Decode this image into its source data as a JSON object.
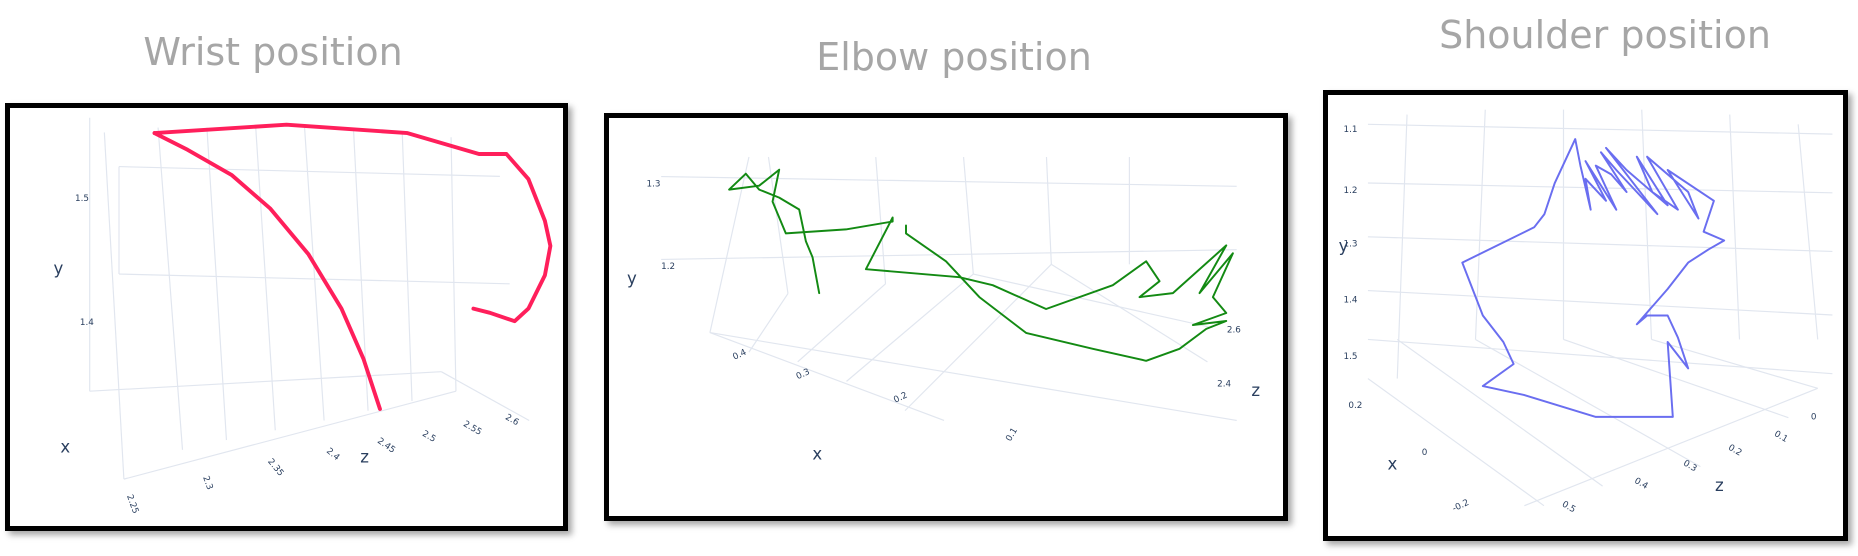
{
  "chart_data": [
    {
      "type": "line3d",
      "title": "Wrist position",
      "axes": {
        "x": "x",
        "y": "y",
        "z": "z"
      },
      "y_ticks": [
        "1.5",
        "1.4"
      ],
      "z_ticks": [
        "2.25",
        "2.3",
        "2.35",
        "2.4",
        "2.45",
        "2.5",
        "2.55",
        "2.6"
      ],
      "series": [
        {
          "color": "#ff1f5b",
          "path": [
            [
              0.26,
              0.06
            ],
            [
              0.5,
              0.04
            ],
            [
              0.72,
              0.06
            ],
            [
              0.85,
              0.11
            ],
            [
              0.9,
              0.11
            ],
            [
              0.94,
              0.17
            ],
            [
              0.97,
              0.27
            ],
            [
              0.98,
              0.33
            ],
            [
              0.97,
              0.4
            ],
            [
              0.94,
              0.48
            ],
            [
              0.915,
              0.51
            ],
            [
              0.87,
              0.49
            ],
            [
              0.84,
              0.48
            ]
          ],
          "path2": [
            [
              0.26,
              0.06
            ],
            [
              0.32,
              0.1
            ],
            [
              0.4,
              0.16
            ],
            [
              0.47,
              0.24
            ],
            [
              0.54,
              0.35
            ],
            [
              0.6,
              0.48
            ],
            [
              0.64,
              0.6
            ],
            [
              0.67,
              0.72
            ]
          ]
        }
      ]
    },
    {
      "type": "line3d",
      "title": "Elbow position",
      "axes": {
        "x": "x",
        "y": "y",
        "z": "z"
      },
      "y_ticks": [
        "1.3",
        "1.2"
      ],
      "x_ticks": [
        "0.4",
        "0.3",
        "0.2",
        "0.1"
      ],
      "z_ticks": [
        "2.6",
        "2.4"
      ],
      "series": [
        {
          "color": "#138a13",
          "path": [
            [
              0.31,
              0.44
            ],
            [
              0.3,
              0.35
            ],
            [
              0.29,
              0.31
            ],
            [
              0.28,
              0.23
            ],
            [
              0.25,
              0.2
            ],
            [
              0.22,
              0.18
            ],
            [
              0.2,
              0.14
            ],
            [
              0.175,
              0.18
            ],
            [
              0.22,
              0.17
            ],
            [
              0.25,
              0.13
            ],
            [
              0.24,
              0.21
            ],
            [
              0.26,
              0.29
            ],
            [
              0.35,
              0.28
            ],
            [
              0.42,
              0.26
            ],
            [
              0.42,
              0.25
            ],
            [
              0.38,
              0.38
            ],
            [
              0.52,
              0.4
            ],
            [
              0.57,
              0.42
            ],
            [
              0.65,
              0.48
            ],
            [
              0.75,
              0.42
            ],
            [
              0.8,
              0.36
            ],
            [
              0.82,
              0.41
            ],
            [
              0.79,
              0.45
            ],
            [
              0.84,
              0.44
            ],
            [
              0.92,
              0.32
            ],
            [
              0.88,
              0.44
            ],
            [
              0.93,
              0.34
            ],
            [
              0.9,
              0.45
            ],
            [
              0.92,
              0.49
            ],
            [
              0.87,
              0.52
            ],
            [
              0.92,
              0.51
            ],
            [
              0.89,
              0.53
            ],
            [
              0.85,
              0.58
            ],
            [
              0.8,
              0.61
            ],
            [
              0.72,
              0.58
            ],
            [
              0.62,
              0.54
            ],
            [
              0.55,
              0.45
            ],
            [
              0.5,
              0.36
            ],
            [
              0.44,
              0.29
            ],
            [
              0.44,
              0.27
            ]
          ]
        }
      ]
    },
    {
      "type": "line3d",
      "title": "Shoulder position",
      "axes": {
        "x": "x",
        "y": "y",
        "z": "z"
      },
      "y_ticks": [
        "1.1",
        "1.2",
        "1.3",
        "1.4",
        "1.5"
      ],
      "x_ticks": [
        "0.2",
        "0",
        "-0.2"
      ],
      "z_ticks": [
        "0",
        "0.1",
        "0.2",
        "0.3",
        "0.4",
        "0.5"
      ],
      "series": [
        {
          "color": "#6a6ef0",
          "path": [
            [
              0.48,
              0.1
            ],
            [
              0.44,
              0.2
            ],
            [
              0.42,
              0.27
            ],
            [
              0.4,
              0.3
            ],
            [
              0.26,
              0.38
            ],
            [
              0.3,
              0.5
            ],
            [
              0.34,
              0.56
            ],
            [
              0.36,
              0.61
            ],
            [
              0.3,
              0.66
            ],
            [
              0.38,
              0.68
            ],
            [
              0.52,
              0.73
            ],
            [
              0.67,
              0.73
            ],
            [
              0.66,
              0.56
            ],
            [
              0.7,
              0.62
            ],
            [
              0.68,
              0.55
            ],
            [
              0.66,
              0.5
            ],
            [
              0.62,
              0.5
            ],
            [
              0.6,
              0.52
            ],
            [
              0.66,
              0.44
            ],
            [
              0.7,
              0.38
            ],
            [
              0.74,
              0.35
            ],
            [
              0.77,
              0.33
            ],
            [
              0.73,
              0.31
            ],
            [
              0.75,
              0.24
            ],
            [
              0.66,
              0.17
            ],
            [
              0.72,
              0.28
            ],
            [
              0.7,
              0.22
            ],
            [
              0.62,
              0.14
            ],
            [
              0.68,
              0.26
            ],
            [
              0.63,
              0.22
            ],
            [
              0.6,
              0.14
            ],
            [
              0.66,
              0.25
            ],
            [
              0.58,
              0.17
            ],
            [
              0.54,
              0.12
            ],
            [
              0.64,
              0.27
            ],
            [
              0.56,
              0.17
            ],
            [
              0.53,
              0.13
            ],
            [
              0.58,
              0.22
            ],
            [
              0.55,
              0.18
            ],
            [
              0.52,
              0.16
            ],
            [
              0.56,
              0.26
            ],
            [
              0.5,
              0.15
            ],
            [
              0.54,
              0.24
            ],
            [
              0.5,
              0.19
            ],
            [
              0.51,
              0.26
            ],
            [
              0.49,
              0.16
            ],
            [
              0.48,
              0.1
            ]
          ]
        }
      ]
    }
  ]
}
